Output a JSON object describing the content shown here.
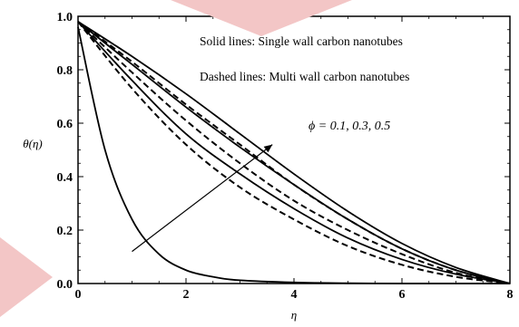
{
  "chart_data": {
    "type": "line",
    "xlabel": "η",
    "ylabel": "θ(η)",
    "xlim": [
      0,
      8
    ],
    "ylim": [
      0,
      1
    ],
    "x_ticks": [
      "0",
      "2",
      "4",
      "6",
      "8"
    ],
    "y_ticks": [
      "0.0",
      "0.2",
      "0.4",
      "0.6",
      "0.8",
      "1.0"
    ],
    "grid": false,
    "annotations": {
      "solid": "Solid lines: Single wall carbon nanotubes",
      "dashed": "Dashed lines: Multi wall carbon nanotubes",
      "phi": "ϕ = 0.1, 0.3, 0.5"
    },
    "series": [
      {
        "style": "solid",
        "x": [
          0,
          0.5,
          1,
          1.5,
          2,
          2.5,
          3,
          4,
          5,
          6,
          7,
          8
        ],
        "y": [
          0.96,
          0.5,
          0.24,
          0.11,
          0.05,
          0.025,
          0.012,
          0.004,
          0.001,
          0.0,
          0.0,
          0.0
        ]
      },
      {
        "style": "solid",
        "x": [
          0,
          1,
          2,
          3,
          4,
          5,
          6,
          7,
          8
        ],
        "y": [
          0.98,
          0.76,
          0.56,
          0.41,
          0.28,
          0.17,
          0.09,
          0.035,
          0.0
        ]
      },
      {
        "style": "solid",
        "x": [
          0,
          1,
          2,
          3,
          4,
          5,
          6,
          7,
          8
        ],
        "y": [
          0.98,
          0.82,
          0.66,
          0.51,
          0.37,
          0.24,
          0.13,
          0.05,
          0.0
        ]
      },
      {
        "style": "solid",
        "x": [
          0,
          1,
          2,
          3,
          4,
          5,
          6,
          7,
          8
        ],
        "y": [
          0.98,
          0.85,
          0.71,
          0.56,
          0.41,
          0.27,
          0.15,
          0.06,
          0.0
        ]
      },
      {
        "style": "dashed",
        "x": [
          0,
          1,
          2,
          3,
          4,
          5,
          6,
          7,
          8
        ],
        "y": [
          0.98,
          0.73,
          0.52,
          0.36,
          0.24,
          0.14,
          0.07,
          0.025,
          0.0
        ]
      },
      {
        "style": "dashed",
        "x": [
          0,
          1,
          2,
          3,
          4,
          5,
          6,
          7,
          8
        ],
        "y": [
          0.98,
          0.79,
          0.61,
          0.45,
          0.31,
          0.2,
          0.11,
          0.04,
          0.0
        ]
      },
      {
        "style": "dashed",
        "x": [
          0,
          1,
          2,
          3,
          4,
          5,
          6,
          7,
          8
        ],
        "y": [
          0.98,
          0.83,
          0.67,
          0.52,
          0.37,
          0.24,
          0.13,
          0.05,
          0.0
        ]
      }
    ],
    "arrow": {
      "from": [
        1.0,
        0.12
      ],
      "to": [
        3.6,
        0.52
      ]
    }
  },
  "watermark": {
    "color": "#f3c6c6"
  }
}
